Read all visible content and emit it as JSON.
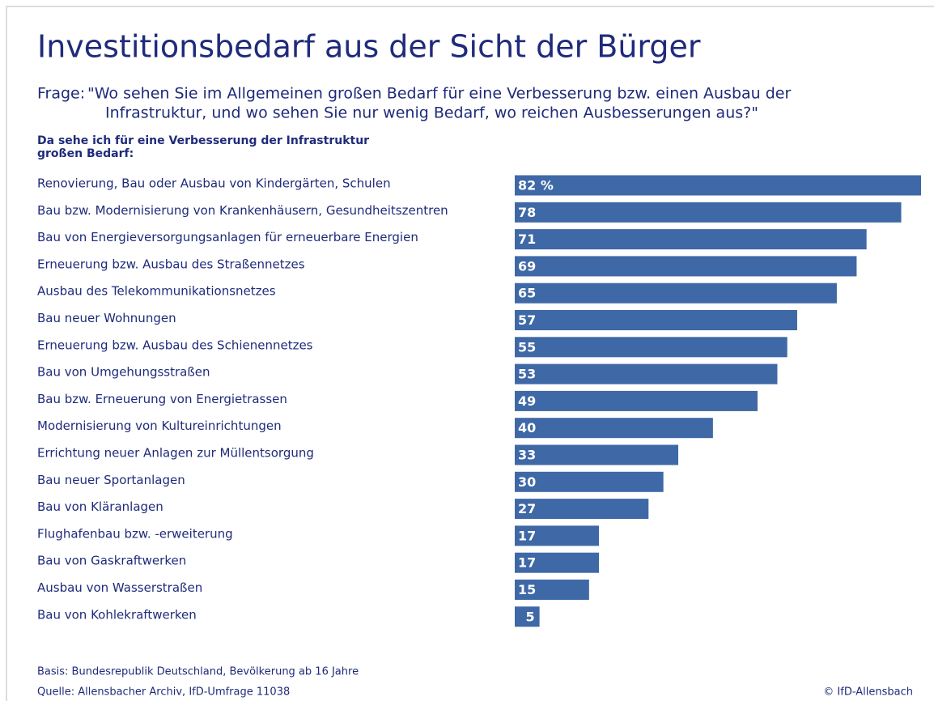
{
  "chart_data": {
    "type": "bar",
    "title": "Investitionsbedarf aus der Sicht der Bürger",
    "question_label": "Frage:",
    "question": [
      "\"Wo sehen Sie im Allgemeinen großen Bedarf für eine Verbesserung bzw. einen Ausbau der",
      "Infrastruktur, und wo sehen Sie nur wenig Bedarf, wo reichen Ausbesserungen aus?\""
    ],
    "subtitle": [
      "Da sehe ich für eine Verbesserung der Infrastruktur",
      "großen Bedarf:"
    ],
    "categories": [
      "Renovierung, Bau oder Ausbau von Kindergärten, Schulen",
      "Bau bzw. Modernisierung von Krankenhäusern, Gesundheitszentren",
      "Bau von Energieversorgungsanlagen für erneuerbare Energien",
      "Erneuerung bzw. Ausbau des Straßennetzes",
      "Ausbau des Telekommunikationsnetzes",
      "Bau neuer Wohnungen",
      "Erneuerung bzw. Ausbau des Schienennetzes",
      "Bau von Umgehungsstraßen",
      "Bau bzw. Erneuerung von Energietrassen",
      "Modernisierung von Kultureinrichtungen",
      "Errichtung neuer Anlagen zur Müllentsorgung",
      "Bau neuer Sportanlagen",
      "Bau von Kläranlagen",
      "Flughafenbau bzw. -erweiterung",
      "Bau von Gaskraftwerken",
      "Ausbau von Wasserstraßen",
      "Bau von Kohlekraftwerken"
    ],
    "values": [
      82,
      78,
      71,
      69,
      65,
      57,
      55,
      53,
      49,
      40,
      33,
      30,
      27,
      17,
      17,
      15,
      5
    ],
    "value_labels": [
      "82 %",
      "78",
      "71",
      "69",
      "65",
      "57",
      "55",
      "53",
      "49",
      "40",
      "33",
      "30",
      "27",
      "17",
      "17",
      "15",
      "5"
    ],
    "color": "#3f68a6",
    "footnotes": [
      "Basis: Bundesrepublik Deutschland, Bevölkerung ab 16 Jahre",
      "Quelle: Allensbacher Archiv, IfD-Umfrage 11038"
    ],
    "copyright": "© IfD-Allensbach"
  }
}
